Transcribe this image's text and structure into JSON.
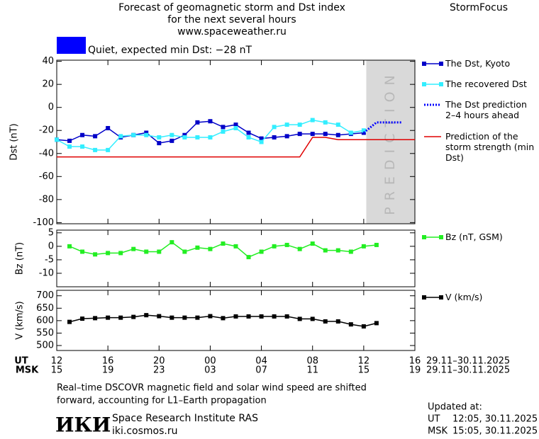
{
  "header": {
    "title_lines": [
      "Forecast of geomagnetic storm and Dst index",
      "for the next several hours",
      "www.spaceweather.ru"
    ],
    "brand": "StormFocus",
    "status": {
      "color": "#0000ff",
      "text": "Quiet, expected min Dst: −28 nT"
    }
  },
  "chart_data": [
    {
      "type": "line",
      "y_label": "Dst (nT)",
      "xlim": [
        0,
        28
      ],
      "ylim": [
        -101,
        41
      ],
      "yticks": [
        40,
        20,
        0,
        -20,
        -40,
        -60,
        -80,
        -100
      ],
      "prediction_zone": {
        "x": [
          24.2,
          28
        ],
        "label": "PREDICTION",
        "color": "#d9d9d9"
      },
      "series": [
        {
          "name": "The Dst, Kyoto",
          "color": "#0000c8",
          "marker": "square",
          "style": "solid",
          "x": [
            0,
            1,
            2,
            3,
            4,
            5,
            6,
            7,
            8,
            9,
            10,
            11,
            12,
            13,
            14,
            15,
            16,
            17,
            18,
            19,
            20,
            21,
            22,
            23,
            24
          ],
          "values": [
            -28,
            -29,
            -24,
            -25,
            -18,
            -26,
            -24,
            -22,
            -31,
            -29,
            -24,
            -13,
            -12,
            -17,
            -15,
            -22,
            -27,
            -26,
            -25,
            -23,
            -23,
            -23,
            -24,
            -23,
            -22
          ]
        },
        {
          "name": "The recovered Dst",
          "color": "#33eeff",
          "marker": "square",
          "style": "solid",
          "x": [
            0,
            1,
            2,
            3,
            4,
            5,
            6,
            7,
            8,
            9,
            10,
            11,
            12,
            13,
            14,
            15,
            16,
            17,
            18,
            19,
            20,
            21,
            22,
            23,
            24
          ],
          "values": [
            -28,
            -34,
            -34,
            -37,
            -37,
            -25,
            -24,
            -24,
            -26,
            -24,
            -26,
            -26,
            -26,
            -21,
            -18,
            -26,
            -30,
            -17,
            -15,
            -15,
            -11,
            -13,
            -15,
            -22,
            -20
          ]
        },
        {
          "name": "The Dst prediction 2–4 hours ahead",
          "color": "#0000ff",
          "marker": "none",
          "style": "dotted",
          "x": [
            24,
            25,
            26,
            27
          ],
          "values": [
            -22,
            -13,
            -13,
            -13
          ]
        },
        {
          "name": "Prediction of the storm strength (min Dst)",
          "color": "#e00000",
          "marker": "none",
          "style": "solid",
          "x": [
            0,
            19,
            20,
            21,
            22,
            28
          ],
          "values": [
            -43,
            -43,
            -26,
            -26,
            -28,
            -28
          ]
        }
      ]
    },
    {
      "type": "line",
      "y_label": "Bz (nT)",
      "xlim": [
        0,
        28
      ],
      "ylim": [
        -15,
        6
      ],
      "yticks": [
        5,
        0,
        -5,
        -10
      ],
      "series": [
        {
          "name": "Bz (nT, GSM)",
          "color": "#22ee22",
          "marker": "square",
          "style": "solid",
          "x": [
            1,
            2,
            3,
            4,
            5,
            6,
            7,
            8,
            9,
            10,
            11,
            12,
            13,
            14,
            15,
            16,
            17,
            18,
            19,
            20,
            21,
            22,
            23,
            24,
            25
          ],
          "values": [
            0,
            -2,
            -3,
            -2.5,
            -2.5,
            -1,
            -2,
            -2,
            1.5,
            -2,
            -0.5,
            -1,
            1,
            0,
            -4,
            -2,
            0,
            0.5,
            -1,
            1,
            -1.5,
            -1.5,
            -2,
            0,
            0.5
          ]
        }
      ]
    },
    {
      "type": "line",
      "y_label": "V (km/s)",
      "xlim": [
        0,
        28
      ],
      "ylim": [
        480,
        722
      ],
      "yticks": [
        700,
        650,
        600,
        550,
        500
      ],
      "series": [
        {
          "name": "V (km/s)",
          "color": "#000000",
          "marker": "square",
          "style": "solid",
          "x": [
            1,
            2,
            3,
            4,
            5,
            6,
            7,
            8,
            9,
            10,
            11,
            12,
            13,
            14,
            15,
            16,
            17,
            18,
            19,
            20,
            21,
            22,
            23,
            24,
            25
          ],
          "values": [
            595,
            608,
            610,
            612,
            612,
            615,
            622,
            618,
            612,
            612,
            612,
            618,
            610,
            617,
            617,
            617,
            617,
            617,
            607,
            607,
            597,
            597,
            585,
            577,
            590
          ]
        }
      ],
      "x_label": "UT",
      "xticks": [
        {
          "value": 0,
          "label": "12"
        },
        {
          "value": 4,
          "label": "16"
        },
        {
          "value": 8,
          "label": "20"
        },
        {
          "value": 12,
          "label": "00"
        },
        {
          "value": 16,
          "label": "04"
        },
        {
          "value": 20,
          "label": "08"
        },
        {
          "value": 24,
          "label": "12"
        },
        {
          "value": 28,
          "label": "16"
        }
      ],
      "x2_label": "MSK",
      "x2ticks": [
        {
          "value": 0,
          "label": "15"
        },
        {
          "value": 4,
          "label": "19"
        },
        {
          "value": 8,
          "label": "23"
        },
        {
          "value": 12,
          "label": "03"
        },
        {
          "value": 16,
          "label": "07"
        },
        {
          "value": 20,
          "label": "11"
        },
        {
          "value": 24,
          "label": "15"
        },
        {
          "value": 28,
          "label": "19"
        }
      ],
      "date_range": "29.11–30.11.2025"
    }
  ],
  "footer": {
    "note_lines": [
      "Real–time DSCOVR magnetic field and solar wind speed are shifted",
      "forward, accounting for L1–Earth propagation"
    ],
    "logo": "ИКИ",
    "institute": "Space Research Institute RAS",
    "site": "iki.cosmos.ru",
    "updated": {
      "title": "Updated at:",
      "rows": [
        [
          "UT",
          "12:05, 30.11.2025"
        ],
        [
          "MSK",
          "15:05, 30.11.2025"
        ]
      ]
    }
  }
}
